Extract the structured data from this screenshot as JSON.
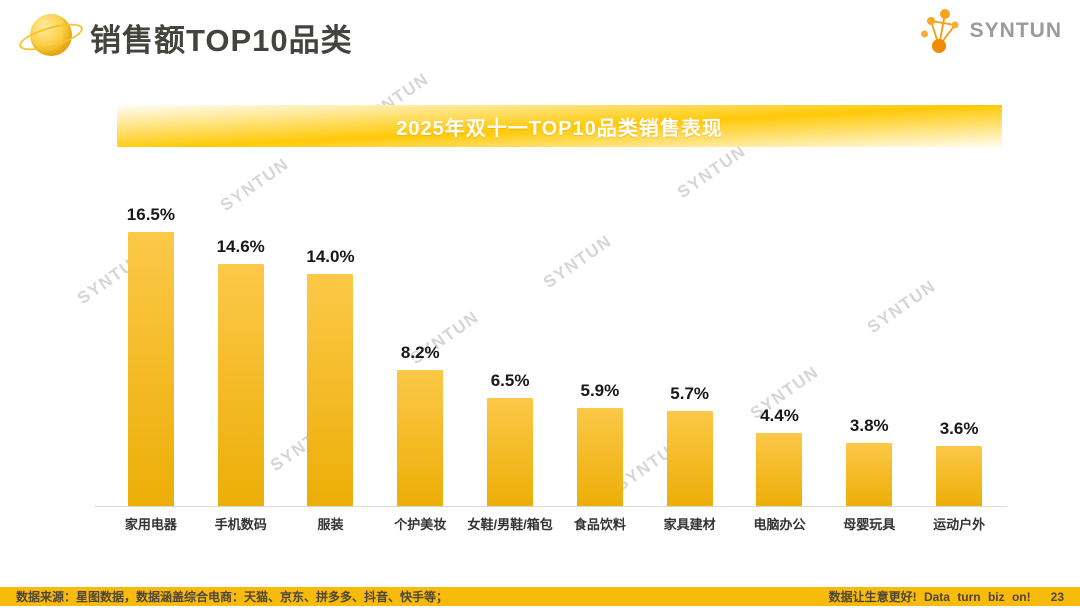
{
  "header": {
    "title": "销售额TOP10品类",
    "brand": "SYNTUN"
  },
  "banner": {
    "title": "2025年双十一TOP10品类销售表现"
  },
  "chart_data": {
    "type": "bar",
    "title": "2025年双十一TOP10品类销售表现",
    "categories": [
      "家用电器",
      "手机数码",
      "服装",
      "个护美妆",
      "女鞋/男鞋/箱包",
      "食品饮料",
      "家具建材",
      "电脑办公",
      "母婴玩具",
      "运动户外"
    ],
    "values": [
      16.5,
      14.6,
      14.0,
      8.2,
      6.5,
      5.9,
      5.7,
      4.4,
      3.8,
      3.6
    ],
    "labels": [
      "16.5%",
      "14.6%",
      "14.0%",
      "8.2%",
      "6.5%",
      "5.9%",
      "5.7%",
      "4.4%",
      "3.8%",
      "3.6%"
    ],
    "xlabel": "",
    "ylabel": "",
    "ylim": [
      0,
      18
    ],
    "grid": false,
    "legend": "none",
    "bar_color_top": "#FCC848",
    "bar_color_bottom": "#ECAE07"
  },
  "watermark": {
    "text": "SYNTUN",
    "color": "#D6D6D6"
  },
  "footer": {
    "left": "数据来源：星图数据，数据涵盖综合电商：天猫、京东、拼多多、抖音、快手等；",
    "right": "数据让生意更好! Data turn biz on!",
    "page": "23"
  },
  "colors": {
    "accent_gold": "#FFC907",
    "footer_bg": "#F8BA0B",
    "title_text": "#44443E",
    "banner_text": "#FFFFFF",
    "baseline": "#D8D8D8"
  }
}
